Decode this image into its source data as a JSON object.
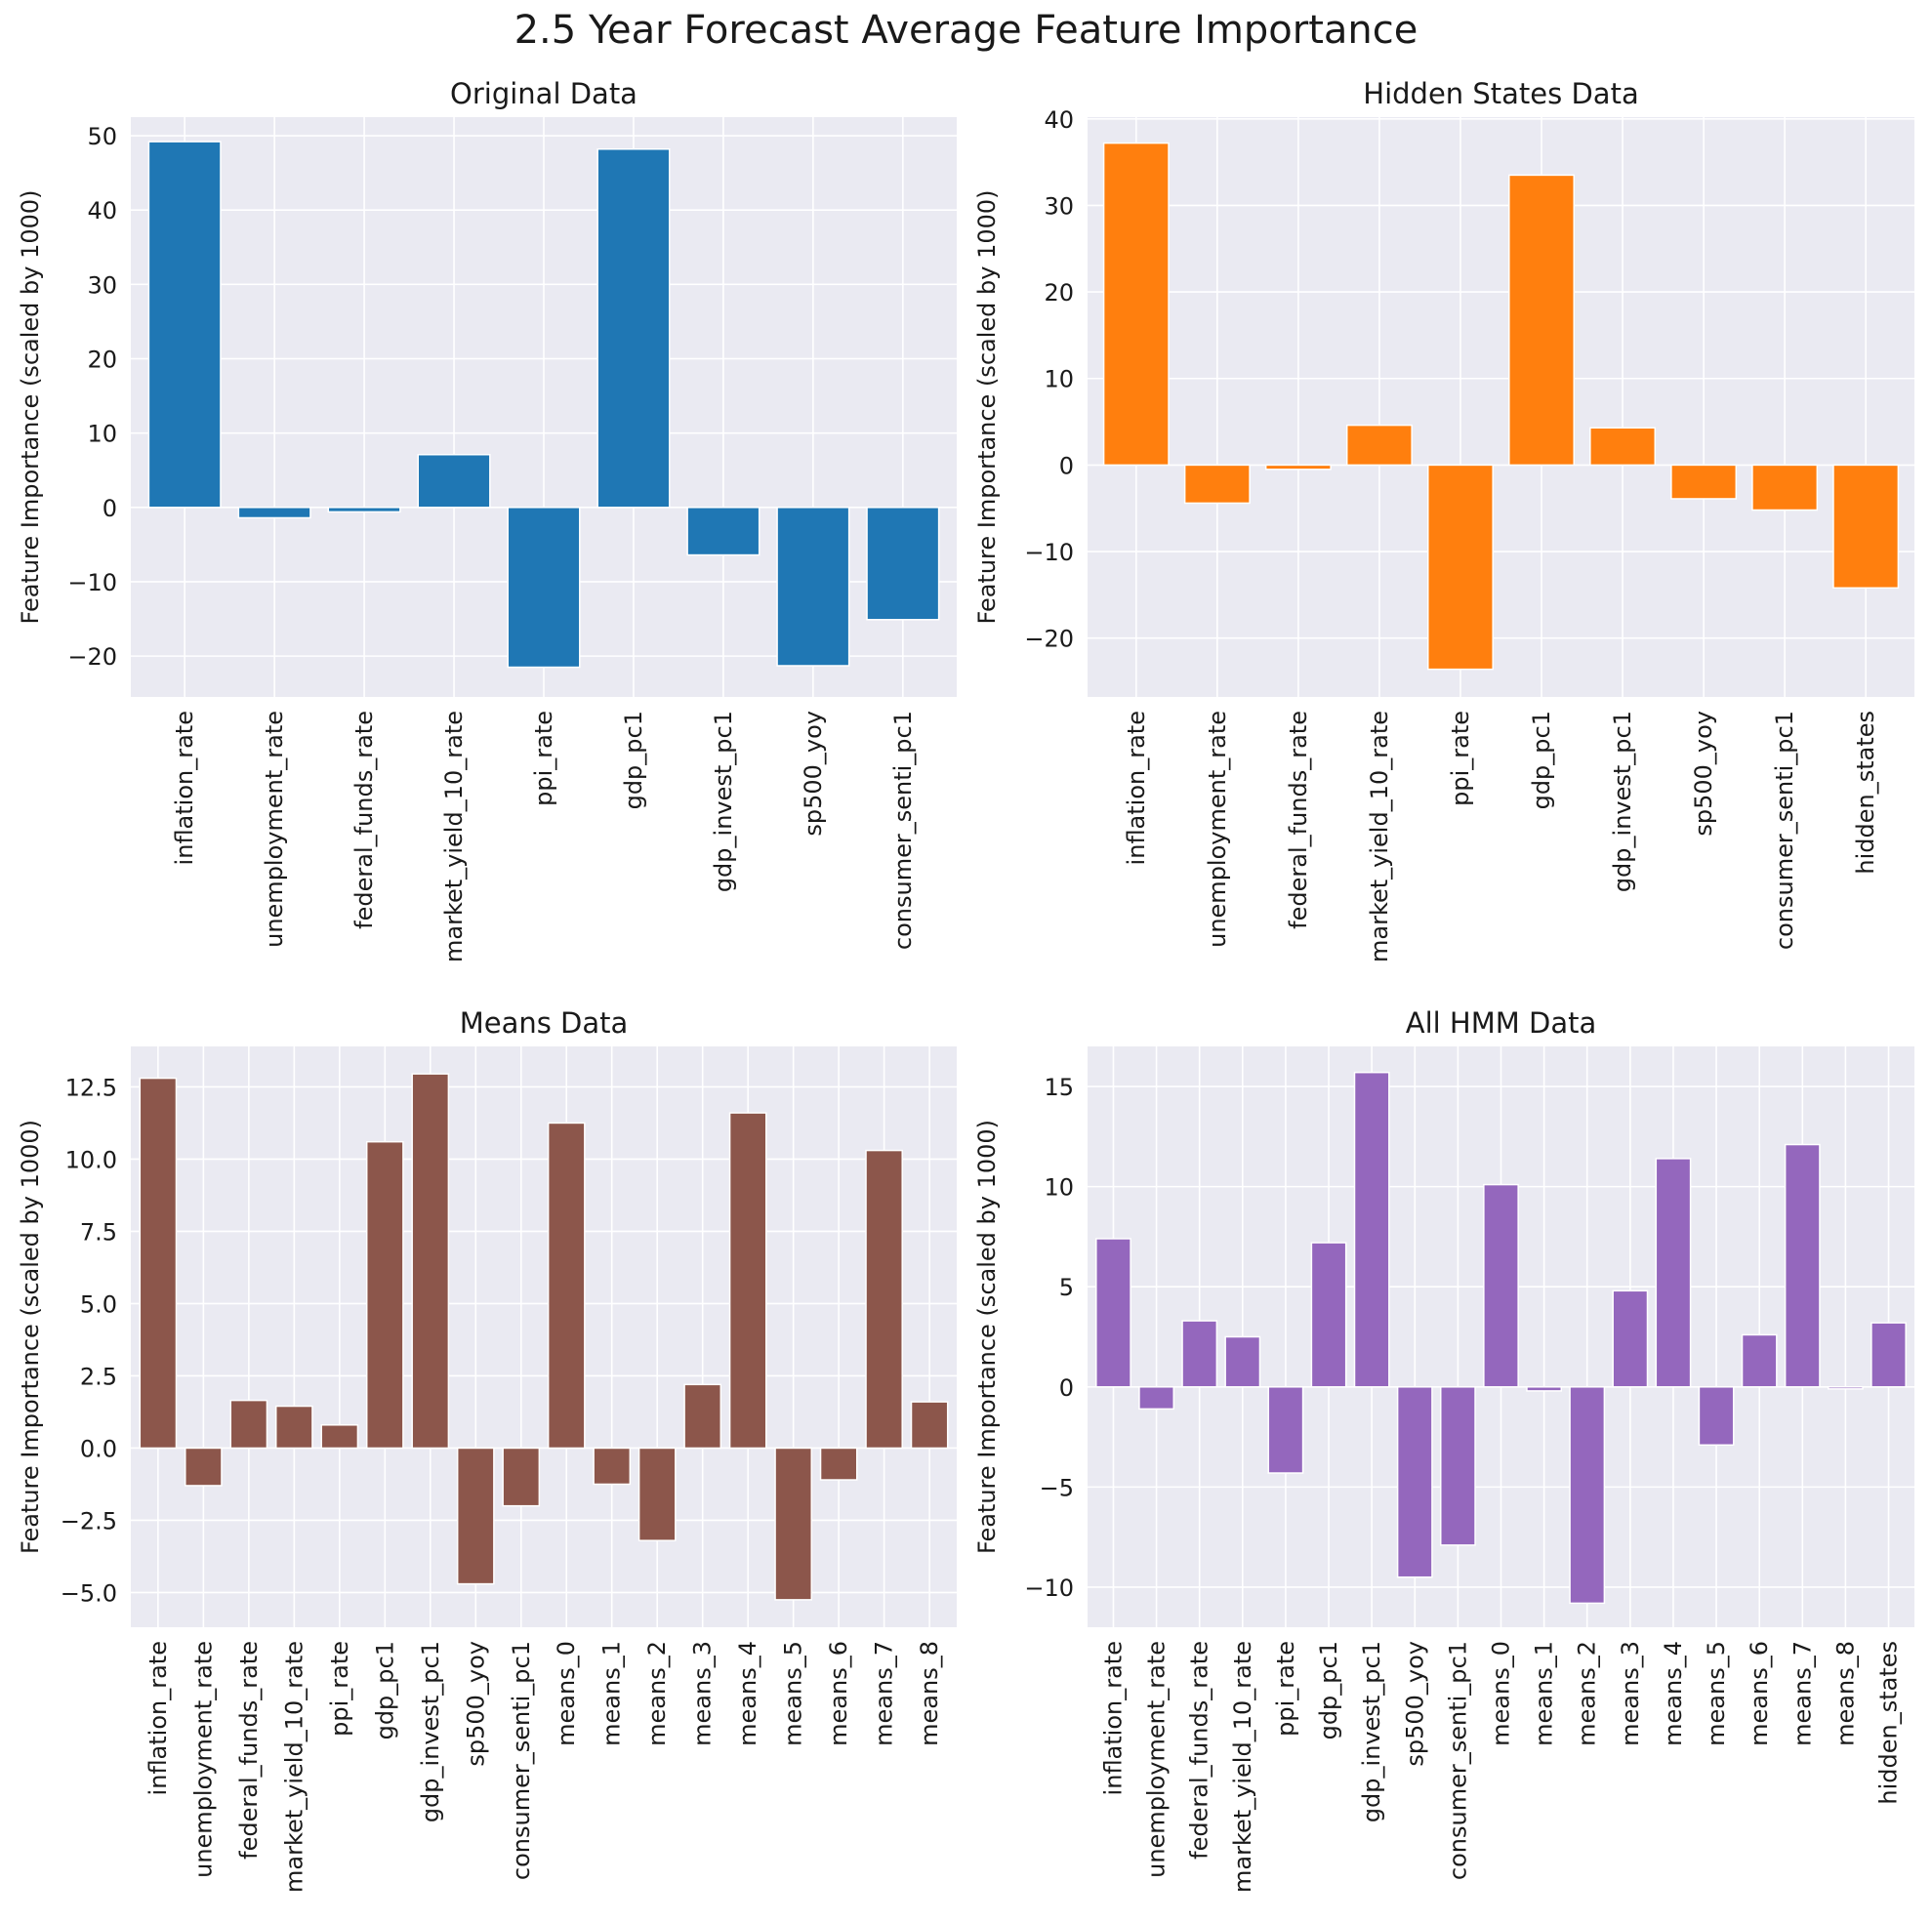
{
  "figure_title": "2.5 Year Forecast Average Feature Importance",
  "chart_data": [
    {
      "type": "bar",
      "title": "Original Data",
      "xlabel": "",
      "ylabel": "Feature Importance (scaled by 1000)",
      "color": "#1f77b4",
      "ylim": [
        -25.5,
        52.5
      ],
      "yticks": [
        -20,
        -10,
        0,
        10,
        20,
        30,
        40,
        50
      ],
      "ytick_labels": [
        "−20",
        "−10",
        "0",
        "10",
        "20",
        "30",
        "40",
        "50"
      ],
      "categories": [
        "inflation_rate",
        "unemployment_rate",
        "federal_funds_rate",
        "market_yield_10_rate",
        "ppi_rate",
        "gdp_pc1",
        "gdp_invest_pc1",
        "sp500_yoy",
        "consumer_senti_pc1"
      ],
      "values": [
        49.2,
        -1.4,
        -0.6,
        7.1,
        -21.5,
        48.2,
        -6.4,
        -21.3,
        -15.1
      ]
    },
    {
      "type": "bar",
      "title": "Hidden States Data",
      "xlabel": "",
      "ylabel": "Feature Importance (scaled by 1000)",
      "color": "#ff7f0e",
      "ylim": [
        -26.8,
        40.2
      ],
      "yticks": [
        -20,
        -10,
        0,
        10,
        20,
        30,
        40
      ],
      "ytick_labels": [
        "−20",
        "−10",
        "0",
        "10",
        "20",
        "30",
        "40"
      ],
      "categories": [
        "inflation_rate",
        "unemployment_rate",
        "federal_funds_rate",
        "market_yield_10_rate",
        "ppi_rate",
        "gdp_pc1",
        "gdp_invest_pc1",
        "sp500_yoy",
        "consumer_senti_pc1",
        "hidden_states"
      ],
      "values": [
        37.2,
        -4.4,
        -0.5,
        4.6,
        -23.6,
        33.5,
        4.3,
        -3.9,
        -5.2,
        -14.2
      ]
    },
    {
      "type": "bar",
      "title": "Means Data",
      "xlabel": "",
      "ylabel": "Feature Importance (scaled by 1000)",
      "color": "#8c564b",
      "ylim": [
        -6.2,
        13.9
      ],
      "yticks": [
        -5.0,
        -2.5,
        0.0,
        2.5,
        5.0,
        7.5,
        10.0,
        12.5
      ],
      "ytick_labels": [
        "−5.0",
        "−2.5",
        "0.0",
        "2.5",
        "5.0",
        "7.5",
        "10.0",
        "12.5"
      ],
      "categories": [
        "inflation_rate",
        "unemployment_rate",
        "federal_funds_rate",
        "market_yield_10_rate",
        "ppi_rate",
        "gdp_pc1",
        "gdp_invest_pc1",
        "sp500_yoy",
        "consumer_senti_pc1",
        "means_0",
        "means_1",
        "means_2",
        "means_3",
        "means_4",
        "means_5",
        "means_6",
        "means_7",
        "means_8"
      ],
      "values": [
        12.8,
        -1.3,
        1.65,
        1.45,
        0.8,
        10.6,
        12.95,
        -4.7,
        -2.0,
        11.25,
        -1.25,
        -3.2,
        2.2,
        11.6,
        -5.25,
        -1.1,
        10.3,
        1.6
      ]
    },
    {
      "type": "bar",
      "title": "All HMM Data",
      "xlabel": "",
      "ylabel": "Feature Importance (scaled by 1000)",
      "color": "#9467bd",
      "ylim": [
        -12.0,
        17.0
      ],
      "yticks": [
        -10,
        -5,
        0,
        5,
        10,
        15
      ],
      "ytick_labels": [
        "−10",
        "−5",
        "0",
        "5",
        "10",
        "15"
      ],
      "categories": [
        "inflation_rate",
        "unemployment_rate",
        "federal_funds_rate",
        "market_yield_10_rate",
        "ppi_rate",
        "gdp_pc1",
        "gdp_invest_pc1",
        "sp500_yoy",
        "consumer_senti_pc1",
        "means_0",
        "means_1",
        "means_2",
        "means_3",
        "means_4",
        "means_5",
        "means_6",
        "means_7",
        "means_8",
        "hidden_states"
      ],
      "values": [
        7.4,
        -1.1,
        3.3,
        2.5,
        -4.3,
        7.2,
        15.7,
        -9.5,
        -7.9,
        10.1,
        -0.2,
        -10.8,
        4.8,
        11.4,
        -2.9,
        2.6,
        12.1,
        -0.1,
        3.2
      ]
    }
  ]
}
